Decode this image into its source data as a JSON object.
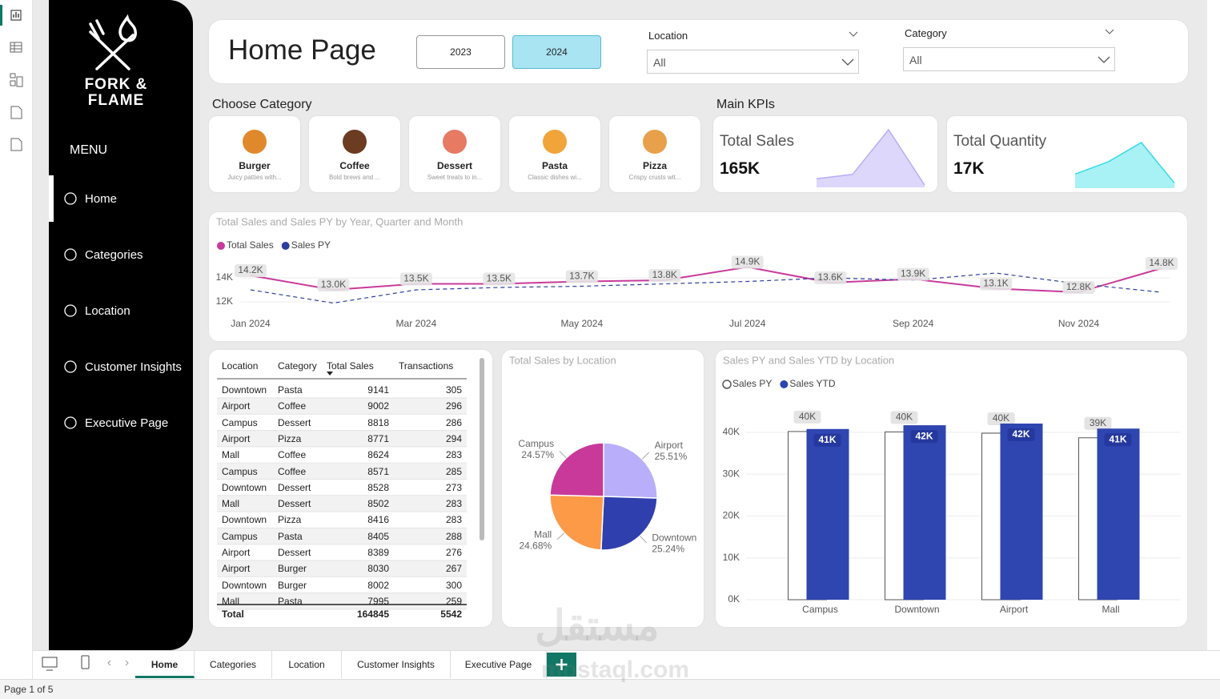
{
  "sidebar": {
    "brand": [
      "FORK &",
      "FLAME"
    ],
    "menu_title": "MENU",
    "nav": [
      "Home",
      "Categories",
      "Location",
      "Customer Insights",
      "Executive Page"
    ]
  },
  "header": {
    "title": "Home Page",
    "years": [
      "2023",
      "2024"
    ],
    "filters": [
      {
        "label": "Location",
        "value": "All"
      },
      {
        "label": "Category",
        "value": "All"
      }
    ]
  },
  "categories": {
    "title": "Choose Category",
    "items": [
      {
        "name": "Burger",
        "description": "Juicy patties with..."
      },
      {
        "name": "Coffee",
        "description": "Bold brews and ..."
      },
      {
        "name": "Dessert",
        "description": "Sweet treats to in..."
      },
      {
        "name": "Pasta",
        "description": "Classic dishes wi..."
      },
      {
        "name": "Pizza",
        "description": "Crispy crusts wit..."
      }
    ]
  },
  "kpis": {
    "title": "Main KPIs",
    "cards": [
      {
        "label": "Total Sales",
        "value": "165K",
        "trend": [
          3,
          4.5,
          20,
          0.8
        ],
        "color": "#ddd7fc",
        "line_color": "#b7adf3"
      },
      {
        "label": "Total Quantity",
        "value": "17K",
        "trend": [
          4,
          7.5,
          13,
          1.5
        ],
        "color": "#a8f1f4",
        "line_color": "#35dbe4"
      }
    ]
  },
  "chart_data": [
    {
      "type": "line",
      "title": "Total Sales and Sales PY by Year, Quarter and Month",
      "categories": [
        "Jan 2024",
        null,
        "Mar 2024",
        null,
        "May 2024",
        null,
        "Jul 2024",
        null,
        "Sep 2024",
        null,
        "Nov 2024",
        null
      ],
      "series": [
        {
          "name": "Total Sales",
          "color": "#c83b9b",
          "style": "solid",
          "values": [
            14200,
            13000,
            13500,
            13500,
            13700,
            13800,
            14900,
            13600,
            13900,
            13100,
            12800,
            14800
          ],
          "value_labels": [
            "14.2K",
            "13.0K",
            "13.5K",
            "13.5K",
            "13.7K",
            "13.8K",
            "14.9K",
            "13.6K",
            "13.9K",
            "13.1K",
            "12.8K",
            "14.8K"
          ]
        },
        {
          "name": "Sales PY",
          "color": "#2d3d9e",
          "style": "dashed",
          "values": [
            13000,
            11900,
            13000,
            13200,
            13300,
            13500,
            13700,
            14000,
            13800,
            14400,
            13500,
            12800
          ]
        }
      ],
      "ylim": [
        11500,
        15000
      ],
      "yticks": [
        {
          "value": 12000,
          "label": "12K"
        },
        {
          "value": 14000,
          "label": "14K"
        }
      ],
      "grid": true,
      "legend": "top-left"
    },
    {
      "type": "pie",
      "title": "Total Sales by Location",
      "categories": [
        "Airport",
        "Downtown",
        "Mall",
        "Campus"
      ],
      "values": [
        25.51,
        25.24,
        24.68,
        24.57
      ],
      "value_labels": [
        "25.51%",
        "25.24%",
        "24.68%",
        "24.57%"
      ],
      "colors": [
        "#b9aefa",
        "#2f3fae",
        "#fd9a47",
        "#c8399a"
      ]
    },
    {
      "type": "bar",
      "title": "Sales PY and Sales YTD by Location",
      "categories": [
        "Campus",
        "Downtown",
        "Airport",
        "Mall"
      ],
      "series": [
        {
          "name": "Sales PY",
          "color": "#ffffff",
          "values": [
            40200,
            40100,
            39800,
            38700
          ],
          "value_labels": [
            "40K",
            "40K",
            "40K",
            "39K"
          ]
        },
        {
          "name": "Sales YTD",
          "color": "#2f45b0",
          "values": [
            40800,
            41700,
            42100,
            40900
          ],
          "value_labels": [
            "41K",
            "42K",
            "42K",
            "41K"
          ]
        }
      ],
      "ylim": [
        0,
        43000
      ],
      "yticks": [
        {
          "value": 0,
          "label": "0K"
        },
        {
          "value": 10000,
          "label": "10K"
        },
        {
          "value": 20000,
          "label": "20K"
        },
        {
          "value": 30000,
          "label": "30K"
        },
        {
          "value": 40000,
          "label": "40K"
        }
      ],
      "grid": true,
      "legend": "top-left"
    }
  ],
  "table": {
    "columns": [
      "Location",
      "Category",
      "Total Sales",
      "Transactions"
    ],
    "rows": [
      [
        "Downtown",
        "Pasta",
        9141,
        305
      ],
      [
        "Airport",
        "Coffee",
        9002,
        296
      ],
      [
        "Campus",
        "Dessert",
        8818,
        286
      ],
      [
        "Airport",
        "Pizza",
        8771,
        294
      ],
      [
        "Mall",
        "Coffee",
        8624,
        283
      ],
      [
        "Campus",
        "Coffee",
        8571,
        285
      ],
      [
        "Downtown",
        "Dessert",
        8528,
        273
      ],
      [
        "Mall",
        "Dessert",
        8502,
        283
      ],
      [
        "Downtown",
        "Pizza",
        8416,
        283
      ],
      [
        "Campus",
        "Pasta",
        8405,
        288
      ],
      [
        "Airport",
        "Dessert",
        8389,
        276
      ],
      [
        "Airport",
        "Burger",
        8030,
        267
      ],
      [
        "Downtown",
        "Burger",
        8002,
        300
      ],
      [
        "Mall",
        "Pasta",
        7995,
        259
      ]
    ],
    "total": {
      "label": "Total",
      "values": [
        164845,
        5542
      ]
    }
  },
  "tabs": [
    "Home",
    "Categories",
    "Location",
    "Customer Insights",
    "Executive Page"
  ],
  "status": "Page 1 of 5",
  "watermark": [
    "مستقل",
    "mostaql.com"
  ]
}
